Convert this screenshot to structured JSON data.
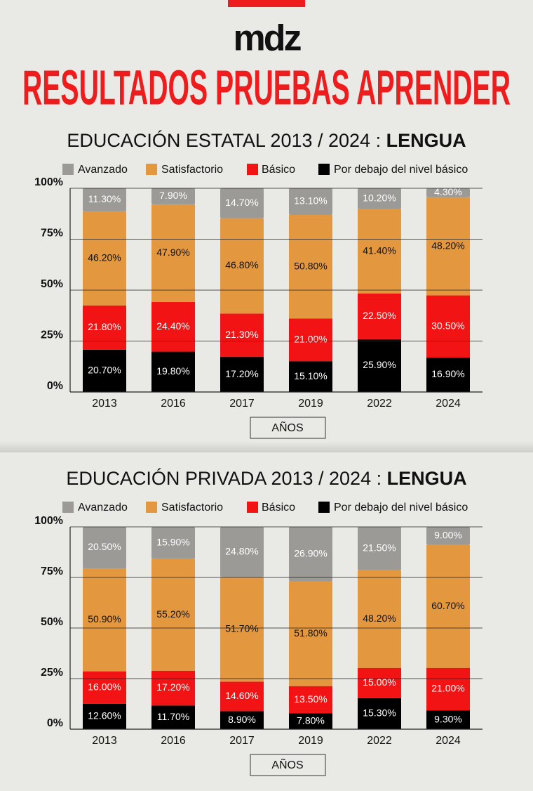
{
  "header": {
    "logo": "mdz",
    "title": "RESULTADOS PRUEBAS APRENDER"
  },
  "chart_data": [
    {
      "type": "stacked_bar",
      "title": "EDUCACIÓN ESTATAL 2013 / 2024 :",
      "subject": "LENGUA",
      "x_label": "AÑOS",
      "categories": [
        "2013",
        "2016",
        "2017",
        "2019",
        "2022",
        "2024"
      ],
      "ylim": [
        0,
        100
      ],
      "yticks": [
        {
          "value": 0,
          "label": "0%"
        },
        {
          "value": 25,
          "label": "25%"
        },
        {
          "value": 50,
          "label": "50%"
        },
        {
          "value": 75,
          "label": "75%"
        },
        {
          "value": 100,
          "label": "100%"
        }
      ],
      "grid": true,
      "series": [
        {
          "name": "Avanzado",
          "color": "#9b9a96",
          "label_color": "#ffffff",
          "values": [
            11.3,
            7.9,
            14.7,
            13.1,
            10.2,
            4.3
          ],
          "value_labels": [
            "11.30%",
            "7.90%",
            "14.70%",
            "13.10%",
            "10.20%",
            "4.30%"
          ]
        },
        {
          "name": "Satisfactorio",
          "color": "#e3973f",
          "label_color": "#111111",
          "values": [
            46.2,
            47.9,
            46.8,
            50.8,
            41.4,
            48.2
          ],
          "value_labels": [
            "46.20%",
            "47.90%",
            "46.80%",
            "50.80%",
            "41.40%",
            "48.20%"
          ]
        },
        {
          "name": "Básico",
          "color": "#f21414",
          "label_color": "#ffffff",
          "values": [
            21.8,
            24.4,
            21.3,
            21.0,
            22.5,
            30.5
          ],
          "value_labels": [
            "21.80%",
            "24.40%",
            "21.30%",
            "21.00%",
            "22.50%",
            "30.50%"
          ]
        },
        {
          "name": "Por debajo del nivel básico",
          "color": "#000000",
          "label_color": "#ffffff",
          "values": [
            20.7,
            19.8,
            17.2,
            15.1,
            25.9,
            16.9
          ],
          "value_labels": [
            "20.70%",
            "19.80%",
            "17.20%",
            "15.10%",
            "25.90%",
            "16.90%"
          ]
        }
      ]
    },
    {
      "type": "stacked_bar",
      "title": "EDUCACIÓN PRIVADA 2013 / 2024 :",
      "subject": "LENGUA",
      "x_label": "AÑOS",
      "categories": [
        "2013",
        "2016",
        "2017",
        "2019",
        "2022",
        "2024"
      ],
      "ylim": [
        0,
        100
      ],
      "yticks": [
        {
          "value": 0,
          "label": "0%"
        },
        {
          "value": 25,
          "label": "25%"
        },
        {
          "value": 50,
          "label": "50%"
        },
        {
          "value": 75,
          "label": "75%"
        },
        {
          "value": 100,
          "label": "100%"
        }
      ],
      "grid": true,
      "series": [
        {
          "name": "Avanzado",
          "color": "#9b9a96",
          "label_color": "#ffffff",
          "values": [
            20.5,
            15.9,
            24.8,
            26.9,
            21.5,
            9.0
          ],
          "value_labels": [
            "20.50%",
            "15.90%",
            "24.80%",
            "26.90%",
            "21.50%",
            "9.00%"
          ]
        },
        {
          "name": "Satisfactorio",
          "color": "#e3973f",
          "label_color": "#111111",
          "values": [
            50.9,
            55.2,
            51.7,
            51.8,
            48.2,
            60.7
          ],
          "value_labels": [
            "50.90%",
            "55.20%",
            "51.70%",
            "51.80%",
            "48.20%",
            "60.70%"
          ]
        },
        {
          "name": "Básico",
          "color": "#f21414",
          "label_color": "#ffffff",
          "values": [
            16.0,
            17.2,
            14.6,
            13.5,
            15.0,
            21.0
          ],
          "value_labels": [
            "16.00%",
            "17.20%",
            "14.60%",
            "13.50%",
            "15.00%",
            "21.00%"
          ]
        },
        {
          "name": "Por debajo del nivel básico",
          "color": "#000000",
          "label_color": "#ffffff",
          "values": [
            12.6,
            11.7,
            8.9,
            7.8,
            15.3,
            9.3
          ],
          "value_labels": [
            "12.60%",
            "11.70%",
            "8.90%",
            "7.80%",
            "15.30%",
            "9.30%"
          ]
        }
      ]
    }
  ]
}
